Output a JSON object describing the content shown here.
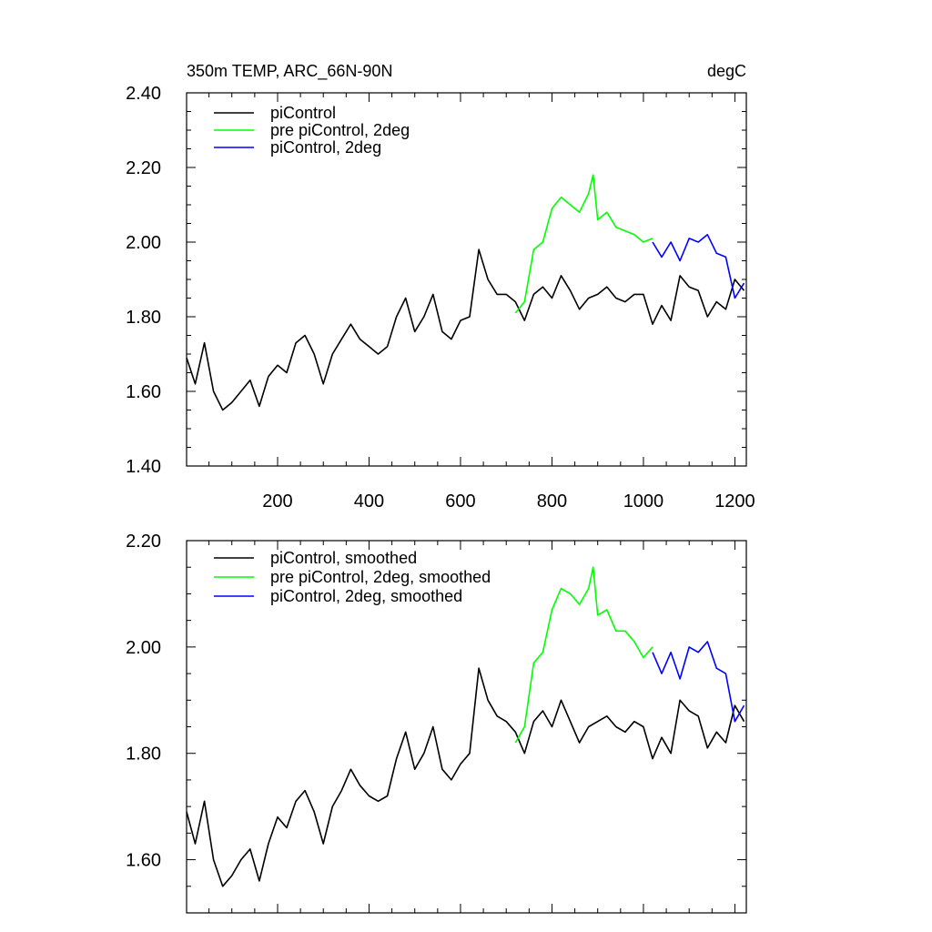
{
  "chart_data": [
    {
      "type": "line",
      "title_left": "350m TEMP, ARC_66N-90N",
      "title_right": "degC",
      "xlim": [
        1,
        1225
      ],
      "ylim": [
        1.4,
        2.4
      ],
      "xticks": [
        200,
        400,
        600,
        800,
        1000,
        1200
      ],
      "xtick_labels": [
        "200",
        "400",
        "600",
        "800",
        "1000",
        "1200"
      ],
      "yticks": [
        1.4,
        1.6,
        1.8,
        2.0,
        2.2,
        2.4
      ],
      "ytick_labels": [
        "1.40",
        "1.60",
        "1.80",
        "2.00",
        "2.20",
        "2.40"
      ],
      "legend_position": "top-left",
      "series": [
        {
          "name": "piControl",
          "color": "#000000",
          "x": [
            1,
            20,
            40,
            60,
            80,
            100,
            120,
            140,
            160,
            180,
            200,
            220,
            240,
            260,
            280,
            300,
            320,
            340,
            360,
            380,
            400,
            420,
            440,
            460,
            480,
            500,
            520,
            540,
            560,
            580,
            600,
            620,
            640,
            660,
            680,
            700,
            720,
            740,
            760,
            780,
            800,
            820,
            840,
            860,
            880,
            900,
            920,
            940,
            960,
            980,
            1000,
            1020,
            1040,
            1060,
            1080,
            1100,
            1120,
            1140,
            1160,
            1180,
            1200,
            1220
          ],
          "values": [
            1.69,
            1.62,
            1.73,
            1.6,
            1.55,
            1.57,
            1.6,
            1.63,
            1.56,
            1.64,
            1.67,
            1.65,
            1.73,
            1.75,
            1.7,
            1.62,
            1.7,
            1.74,
            1.78,
            1.74,
            1.72,
            1.7,
            1.72,
            1.8,
            1.85,
            1.76,
            1.8,
            1.86,
            1.76,
            1.74,
            1.79,
            1.8,
            1.98,
            1.9,
            1.86,
            1.86,
            1.84,
            1.79,
            1.86,
            1.88,
            1.85,
            1.91,
            1.87,
            1.82,
            1.85,
            1.86,
            1.88,
            1.85,
            1.84,
            1.86,
            1.86,
            1.78,
            1.83,
            1.79,
            1.91,
            1.88,
            1.87,
            1.8,
            1.84,
            1.82,
            1.9,
            1.87
          ]
        },
        {
          "name": "pre piControl, 2deg",
          "color": "#00ff00",
          "x": [
            720,
            740,
            760,
            780,
            800,
            820,
            840,
            860,
            880,
            890,
            900,
            920,
            940,
            960,
            980,
            1000,
            1020
          ],
          "values": [
            1.81,
            1.84,
            1.98,
            2.0,
            2.09,
            2.12,
            2.1,
            2.08,
            2.13,
            2.18,
            2.06,
            2.08,
            2.04,
            2.03,
            2.02,
            2.0,
            2.01
          ]
        },
        {
          "name": "piControl, 2deg",
          "color": "#0000ff",
          "x": [
            1020,
            1040,
            1060,
            1080,
            1100,
            1120,
            1140,
            1160,
            1180,
            1200,
            1220
          ],
          "values": [
            2.0,
            1.96,
            2.0,
            1.95,
            2.01,
            2.0,
            2.02,
            1.97,
            1.96,
            1.85,
            1.89
          ]
        }
      ]
    },
    {
      "type": "line",
      "xlim": [
        1,
        1225
      ],
      "ylim": [
        1.5,
        2.2
      ],
      "xticks": [
        200,
        400,
        600,
        800,
        1000,
        1200
      ],
      "yticks": [
        1.6,
        1.8,
        2.0,
        2.2
      ],
      "ytick_labels": [
        "1.60",
        "1.80",
        "2.00",
        "2.20"
      ],
      "legend_position": "top-left",
      "series": [
        {
          "name": "piControl, smoothed",
          "color": "#000000",
          "x": [
            1,
            20,
            40,
            60,
            80,
            100,
            120,
            140,
            160,
            180,
            200,
            220,
            240,
            260,
            280,
            300,
            320,
            340,
            360,
            380,
            400,
            420,
            440,
            460,
            480,
            500,
            520,
            540,
            560,
            580,
            600,
            620,
            640,
            660,
            680,
            700,
            720,
            740,
            760,
            780,
            800,
            820,
            840,
            860,
            880,
            900,
            920,
            940,
            960,
            980,
            1000,
            1020,
            1040,
            1060,
            1080,
            1100,
            1120,
            1140,
            1160,
            1180,
            1200,
            1220
          ],
          "values": [
            1.69,
            1.63,
            1.71,
            1.6,
            1.55,
            1.57,
            1.6,
            1.62,
            1.56,
            1.63,
            1.68,
            1.66,
            1.71,
            1.73,
            1.69,
            1.63,
            1.7,
            1.73,
            1.77,
            1.74,
            1.72,
            1.71,
            1.72,
            1.79,
            1.84,
            1.77,
            1.8,
            1.85,
            1.77,
            1.75,
            1.78,
            1.8,
            1.96,
            1.9,
            1.87,
            1.86,
            1.84,
            1.8,
            1.86,
            1.88,
            1.85,
            1.9,
            1.86,
            1.82,
            1.85,
            1.86,
            1.87,
            1.85,
            1.84,
            1.86,
            1.85,
            1.79,
            1.83,
            1.8,
            1.9,
            1.88,
            1.87,
            1.81,
            1.84,
            1.82,
            1.89,
            1.86
          ]
        },
        {
          "name": "pre piControl, 2deg, smoothed",
          "color": "#00ff00",
          "x": [
            720,
            740,
            760,
            780,
            800,
            820,
            840,
            860,
            880,
            890,
            900,
            920,
            940,
            960,
            980,
            1000,
            1020
          ],
          "values": [
            1.82,
            1.85,
            1.97,
            1.99,
            2.07,
            2.11,
            2.1,
            2.08,
            2.11,
            2.15,
            2.06,
            2.07,
            2.03,
            2.03,
            2.01,
            1.98,
            2.0
          ]
        },
        {
          "name": "piControl, 2deg, smoothed",
          "color": "#0000ff",
          "x": [
            1020,
            1040,
            1060,
            1080,
            1100,
            1120,
            1140,
            1160,
            1180,
            1200,
            1220
          ],
          "values": [
            1.99,
            1.95,
            1.99,
            1.94,
            2.0,
            1.99,
            2.01,
            1.96,
            1.95,
            1.86,
            1.89
          ]
        }
      ]
    }
  ]
}
